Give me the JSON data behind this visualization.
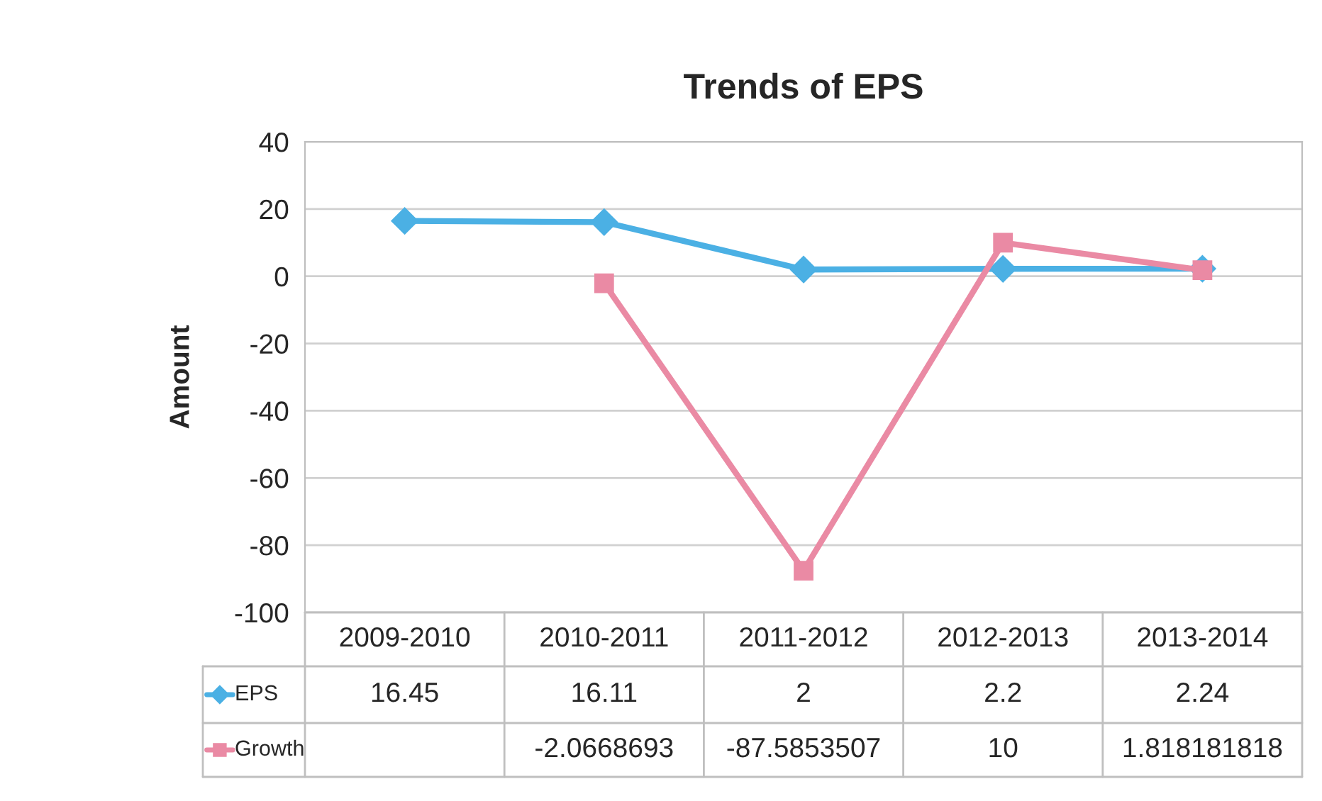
{
  "chart_data": {
    "type": "line",
    "title": "Trends of EPS",
    "ylabel": "Amount",
    "categories": [
      "2009-2010",
      "2010-2011",
      "2011-2012",
      "2012-2013",
      "2013-2014"
    ],
    "series": [
      {
        "name": "EPS",
        "color": "#4bb0e4",
        "marker": "diamond",
        "values": [
          16.45,
          16.11,
          2,
          2.2,
          2.24
        ]
      },
      {
        "name": "Growth",
        "color": "#ea8aa4",
        "marker": "square",
        "values": [
          null,
          -2.0668693,
          -87.5853507,
          10,
          1.818181818
        ]
      }
    ],
    "ylim": [
      -100,
      40
    ],
    "yticks": [
      -100,
      -80,
      -60,
      -40,
      -20,
      0,
      20,
      40
    ],
    "grid": "y",
    "legend": "bottom",
    "data_labels": true,
    "line_style": "solid"
  }
}
